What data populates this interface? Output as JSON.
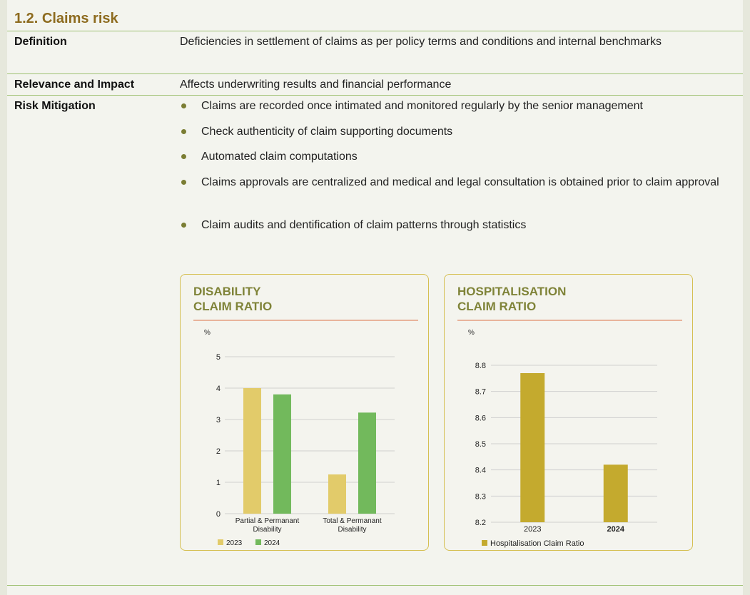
{
  "section_title": "1.2. Claims risk",
  "rows": {
    "definition": {
      "label": "Definition",
      "text": "Deficiencies in settlement of claims as per policy terms and conditions and internal benchmarks"
    },
    "relevance": {
      "label": "Relevance and Impact",
      "text": "Affects underwriting results and financial performance"
    },
    "mitigation": {
      "label": "Risk Mitigation",
      "items": [
        "Claims are recorded once intimated and monitored regularly by the senior management",
        "Check authenticity of claim supporting documents",
        "Automated claim computations",
        "Claims approvals are centralized and medical and legal consultation is obtained prior to claim approval",
        "Claim audits and dentification of claim patterns through statistics"
      ]
    }
  },
  "chart_data": [
    {
      "type": "bar",
      "title": "DISABILITY CLAIM RATIO",
      "title_lines": [
        "DISABILITY",
        "CLAIM RATIO"
      ],
      "ylabel": "%",
      "ylim": [
        0,
        5
      ],
      "yticks": [
        0,
        1,
        2,
        3,
        4,
        5
      ],
      "categories": [
        "Partial & Permanant Disability",
        "Total & Permanant Disability"
      ],
      "category_lines": [
        [
          "Partial & Permanant",
          "Disability"
        ],
        [
          "Total & Permanant",
          "Disability"
        ]
      ],
      "series": [
        {
          "name": "2023",
          "values": [
            4.0,
            1.25
          ],
          "color": "#e2cb6a"
        },
        {
          "name": "2024",
          "values": [
            3.8,
            3.22
          ],
          "color": "#72b95c"
        }
      ],
      "grid": true,
      "legend": "bottom-left"
    },
    {
      "type": "bar",
      "title": "HOSPITALISATION CLAIM RATIO",
      "title_lines": [
        "HOSPITALISATION",
        "CLAIM RATIO"
      ],
      "ylabel": "%",
      "ylim": [
        8.2,
        8.8
      ],
      "yticks": [
        "8.2",
        "8.3",
        "8.4",
        "8.5",
        "8.6",
        "8.7",
        "8.8"
      ],
      "categories": [
        "2023",
        "2024"
      ],
      "series": [
        {
          "name": "Hospitalisation Claim Ratio",
          "values": [
            8.77,
            8.42
          ],
          "color": "#c4aa2e"
        }
      ],
      "grid": true,
      "legend": "bottom-left"
    }
  ],
  "colors": {
    "title": "#8d6b1f",
    "rule": "#9fc173",
    "card_border": "#d5bf52",
    "card_title": "#7f8338",
    "card_rule": "#e8b39b"
  }
}
